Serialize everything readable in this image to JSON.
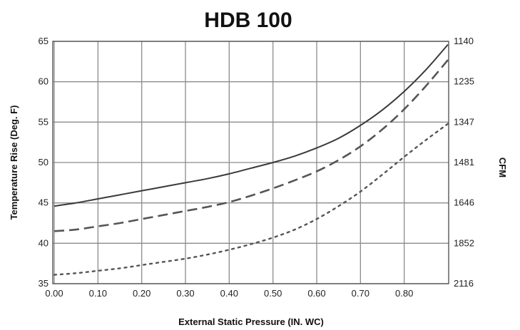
{
  "chart_data": {
    "type": "line",
    "title": "HDB 100",
    "xlabel": "External Static Pressure (IN. WC)",
    "ylabel": "Temperature Rise (Deg. F)",
    "y2label": "CFM",
    "xlim": [
      0.0,
      0.9
    ],
    "ylim": [
      35,
      65
    ],
    "x_ticks": [
      "0.00",
      "0.10",
      "0.20",
      "0.30",
      "0.40",
      "0.50",
      "0.60",
      "0.70",
      "0.80"
    ],
    "y_ticks": [
      "35",
      "40",
      "45",
      "50",
      "55",
      "60",
      "65"
    ],
    "y2_ticks": [
      "2116",
      "1852",
      "1646",
      "1481",
      "1347",
      "1235",
      "1140"
    ],
    "grid": true,
    "series": [
      {
        "style": "solid",
        "color": "#3a3a3a",
        "x": [
          0.0,
          0.05,
          0.1,
          0.15,
          0.2,
          0.25,
          0.3,
          0.35,
          0.4,
          0.45,
          0.5,
          0.55,
          0.6,
          0.65,
          0.7,
          0.75,
          0.8,
          0.85,
          0.9
        ],
        "y": [
          44.6,
          45.0,
          45.5,
          46.0,
          46.5,
          47.0,
          47.5,
          48.0,
          48.6,
          49.3,
          50.0,
          50.8,
          51.8,
          53.0,
          54.6,
          56.5,
          58.8,
          61.5,
          64.6
        ]
      },
      {
        "style": "dashed",
        "color": "#555555",
        "x": [
          0.0,
          0.05,
          0.1,
          0.15,
          0.2,
          0.25,
          0.3,
          0.35,
          0.4,
          0.45,
          0.5,
          0.55,
          0.6,
          0.65,
          0.7,
          0.75,
          0.8,
          0.85,
          0.9
        ],
        "y": [
          41.5,
          41.7,
          42.1,
          42.5,
          43.0,
          43.5,
          44.0,
          44.5,
          45.1,
          45.9,
          46.8,
          47.8,
          48.9,
          50.3,
          52.0,
          54.1,
          56.6,
          59.5,
          62.7
        ]
      },
      {
        "style": "dotted",
        "color": "#555555",
        "x": [
          0.0,
          0.05,
          0.1,
          0.15,
          0.2,
          0.25,
          0.3,
          0.35,
          0.4,
          0.45,
          0.5,
          0.55,
          0.6,
          0.65,
          0.7,
          0.75,
          0.8,
          0.85,
          0.9
        ],
        "y": [
          36.1,
          36.3,
          36.6,
          36.9,
          37.3,
          37.7,
          38.1,
          38.6,
          39.2,
          39.9,
          40.7,
          41.7,
          43.0,
          44.6,
          46.4,
          48.5,
          50.7,
          52.8,
          54.8
        ]
      }
    ]
  }
}
